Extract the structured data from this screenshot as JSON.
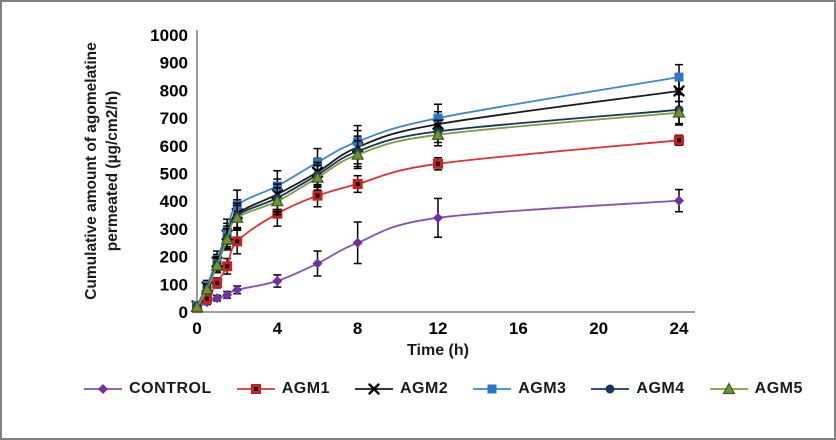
{
  "frame": {
    "border_color": "#808080",
    "background": "#ffffff"
  },
  "chart_data": {
    "type": "line",
    "title": "",
    "xlabel": "Time (h)",
    "ylabel": "Cumulative amount of agomelatine\npermeated (µg/cm2/h)",
    "x": [
      0,
      0.5,
      1,
      1.5,
      2,
      4,
      6,
      8,
      12,
      24
    ],
    "xlim": [
      0,
      24
    ],
    "ylim": [
      0,
      1000
    ],
    "x_ticks": [
      0,
      4,
      8,
      12,
      16,
      20,
      24
    ],
    "y_ticks": [
      0,
      100,
      200,
      300,
      400,
      500,
      600,
      700,
      800,
      900,
      1000
    ],
    "grid": false,
    "legend_position": "bottom",
    "axis_color": "#808080",
    "error_bar_color": "#000000",
    "series": [
      {
        "name": "CONTROL",
        "marker": "diamond",
        "line_color": "#8353b0",
        "marker_color": "#7030a0",
        "values": [
          15,
          35,
          50,
          62,
          80,
          112,
          175,
          250,
          340,
          402
        ],
        "err": [
          0,
          8,
          10,
          12,
          14,
          22,
          45,
          75,
          70,
          40
        ]
      },
      {
        "name": "AGM1",
        "marker": "square-dot",
        "line_color": "#df3232",
        "marker_color": "#cc2020",
        "values": [
          15,
          48,
          105,
          165,
          255,
          355,
          420,
          462,
          535,
          620
        ],
        "err": [
          0,
          12,
          18,
          28,
          45,
          45,
          40,
          30,
          22,
          18
        ]
      },
      {
        "name": "AGM2",
        "marker": "x",
        "line_color": "#1a1a1a",
        "marker_color": "#000000",
        "values": [
          22,
          90,
          180,
          278,
          355,
          425,
          505,
          595,
          678,
          798
        ],
        "err": [
          0,
          18,
          28,
          42,
          50,
          55,
          50,
          60,
          45,
          38
        ]
      },
      {
        "name": "AGM3",
        "marker": "square",
        "line_color": "#3f87c9",
        "marker_color": "#2e75c3",
        "values": [
          24,
          96,
          190,
          290,
          385,
          455,
          540,
          615,
          700,
          848
        ],
        "err": [
          0,
          18,
          30,
          45,
          55,
          55,
          50,
          58,
          50,
          45
        ]
      },
      {
        "name": "AGM4",
        "marker": "circle",
        "line_color": "#17365d",
        "marker_color": "#17365d",
        "values": [
          20,
          86,
          174,
          270,
          348,
          412,
          495,
          580,
          652,
          730
        ],
        "err": [
          0,
          16,
          26,
          40,
          45,
          50,
          45,
          55,
          40,
          55
        ]
      },
      {
        "name": "AGM5",
        "marker": "triangle",
        "line_color": "#7d9b44",
        "marker_color": "#6f9433",
        "marker_border": "#3e5c1f",
        "values": [
          18,
          82,
          168,
          262,
          340,
          400,
          485,
          568,
          640,
          720
        ],
        "err": [
          0,
          16,
          26,
          38,
          45,
          48,
          45,
          50,
          40,
          40
        ]
      }
    ]
  }
}
